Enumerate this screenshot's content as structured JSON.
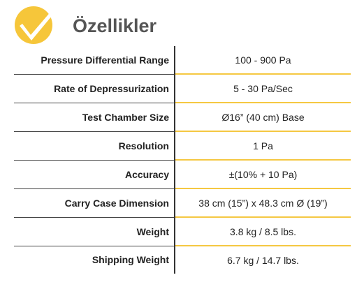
{
  "header": {
    "title": "Özellikler"
  },
  "table": {
    "rows": [
      [
        "Pressure Differential Range",
        "100 - 900 Pa"
      ],
      [
        "Rate of Depressurization",
        "5 - 30 Pa/Sec"
      ],
      [
        "Test Chamber Size",
        "Ø16” (40 cm) Base"
      ],
      [
        "Resolution",
        "1 Pa"
      ],
      [
        "Accuracy",
        "±(10% + 10 Pa)"
      ],
      [
        "Carry Case Dimension",
        "38 cm (15”) x 48.3 cm Ø (19”)"
      ],
      [
        "Weight",
        "3.8 kg / 8.5 lbs."
      ],
      [
        "Shipping Weight",
        "6.7 kg / 14.7 lbs."
      ]
    ]
  }
}
